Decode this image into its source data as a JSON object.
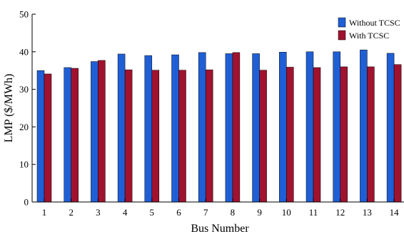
{
  "chart_data": {
    "type": "bar",
    "title": "",
    "xlabel": "Bus Number",
    "ylabel": "LMP ($/MWh)",
    "categories": [
      "1",
      "2",
      "3",
      "4",
      "5",
      "6",
      "7",
      "8",
      "9",
      "10",
      "11",
      "12",
      "13",
      "14"
    ],
    "ylim": [
      0,
      50
    ],
    "yticks": [
      0,
      10,
      20,
      30,
      40,
      50
    ],
    "grid": false,
    "legend_position": "top-right",
    "series": [
      {
        "name": "Without TCSC",
        "color": "#1f5fd6",
        "values": [
          35.0,
          35.8,
          37.4,
          39.4,
          39.0,
          39.2,
          39.8,
          39.5,
          39.5,
          39.9,
          40.0,
          40.0,
          40.5,
          39.6
        ]
      },
      {
        "name": "With TCSC",
        "color": "#a0122e",
        "values": [
          34.1,
          35.6,
          37.7,
          35.2,
          35.1,
          35.1,
          35.2,
          39.8,
          35.1,
          35.9,
          35.8,
          36.0,
          36.0,
          36.6
        ]
      }
    ]
  }
}
